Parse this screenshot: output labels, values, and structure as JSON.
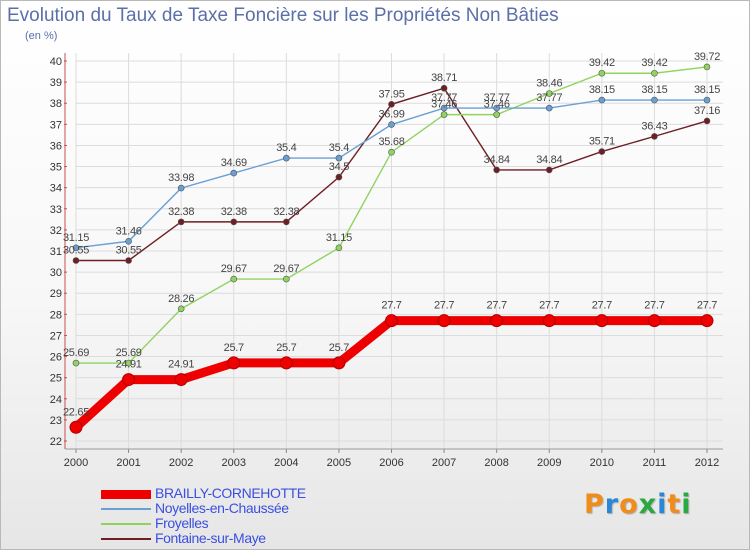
{
  "header": {
    "title": "Evolution du Taux de Taxe Foncière sur les Propriétés Non Bâties",
    "unit": "(en %)"
  },
  "logo": {
    "letters": [
      "P",
      "r",
      "o",
      "x",
      "i",
      "t",
      "i"
    ],
    "colors": [
      "#f08c1a",
      "#2a87d6",
      "#f08c1a",
      "#2aa842",
      "#2a87d6",
      "#f08c1a",
      "#2aa842"
    ]
  },
  "chart_data": {
    "type": "line",
    "title": "Evolution du Taux de Taxe Foncière sur les Propriétés Non Bâties",
    "ylabel": "(en %)",
    "xlabel": "",
    "ylim": [
      22,
      40
    ],
    "yticks": [
      "22",
      "23",
      "24",
      "25",
      "26",
      "27",
      "28",
      "29",
      "30",
      "31",
      "32",
      "33",
      "34",
      "35",
      "36",
      "37",
      "38",
      "39",
      "40"
    ],
    "grid": true,
    "legend": "bottom-left",
    "categories": [
      "2000",
      "2001",
      "2002",
      "2003",
      "2004",
      "2005",
      "2006",
      "2007",
      "2008",
      "2009",
      "2010",
      "2011",
      "2012"
    ],
    "series": [
      {
        "name": "Fontaine-sur-Maye",
        "color": "#6e1e24",
        "values": [
          30.55,
          30.55,
          32.38,
          32.38,
          32.38,
          34.5,
          37.95,
          38.71,
          34.84,
          34.84,
          35.71,
          36.43,
          37.16
        ],
        "labels": [
          "30.55",
          "30.55",
          "32.38",
          "32.38",
          "32.38",
          "34.5",
          "37.95",
          "38.71",
          "34.84",
          "34.84",
          "35.71",
          "36.43",
          "37.16"
        ]
      },
      {
        "name": "Froyelles",
        "color": "#8fd45f",
        "values": [
          25.69,
          25.69,
          28.26,
          29.67,
          29.67,
          31.15,
          35.68,
          37.46,
          37.46,
          38.46,
          39.42,
          39.42,
          39.72
        ],
        "labels": [
          "25.69",
          "25.69",
          "28.26",
          "29.67",
          "29.67",
          "31.15",
          "35.68",
          "37.46",
          "37.46",
          "38.46",
          "39.42",
          "39.42",
          "39.72"
        ]
      },
      {
        "name": "Noyelles-en-Chaussée",
        "color": "#6b9fd4",
        "values": [
          31.15,
          31.46,
          33.98,
          34.69,
          35.4,
          35.4,
          36.99,
          37.77,
          37.77,
          37.77,
          38.15,
          38.15,
          38.15
        ],
        "labels": [
          "31.15",
          "31.46",
          "33.98",
          "34.69",
          "35.4",
          "35.4",
          "36.99",
          "37.77",
          "37.77",
          "37.77",
          "38.15",
          "38.15",
          "38.15"
        ]
      },
      {
        "name": "BRAILLY-CORNEHOTTE",
        "color": "#ee0000",
        "values": [
          22.65,
          24.91,
          24.91,
          25.7,
          25.7,
          25.7,
          27.7,
          27.7,
          27.7,
          27.7,
          27.7,
          27.7,
          27.7
        ],
        "labels": [
          "22.65",
          "24.91",
          "24.91",
          "25.7",
          "25.7",
          "25.7",
          "27.7",
          "27.7",
          "27.7",
          "27.7",
          "27.7",
          "27.7",
          "27.7"
        ]
      }
    ]
  }
}
